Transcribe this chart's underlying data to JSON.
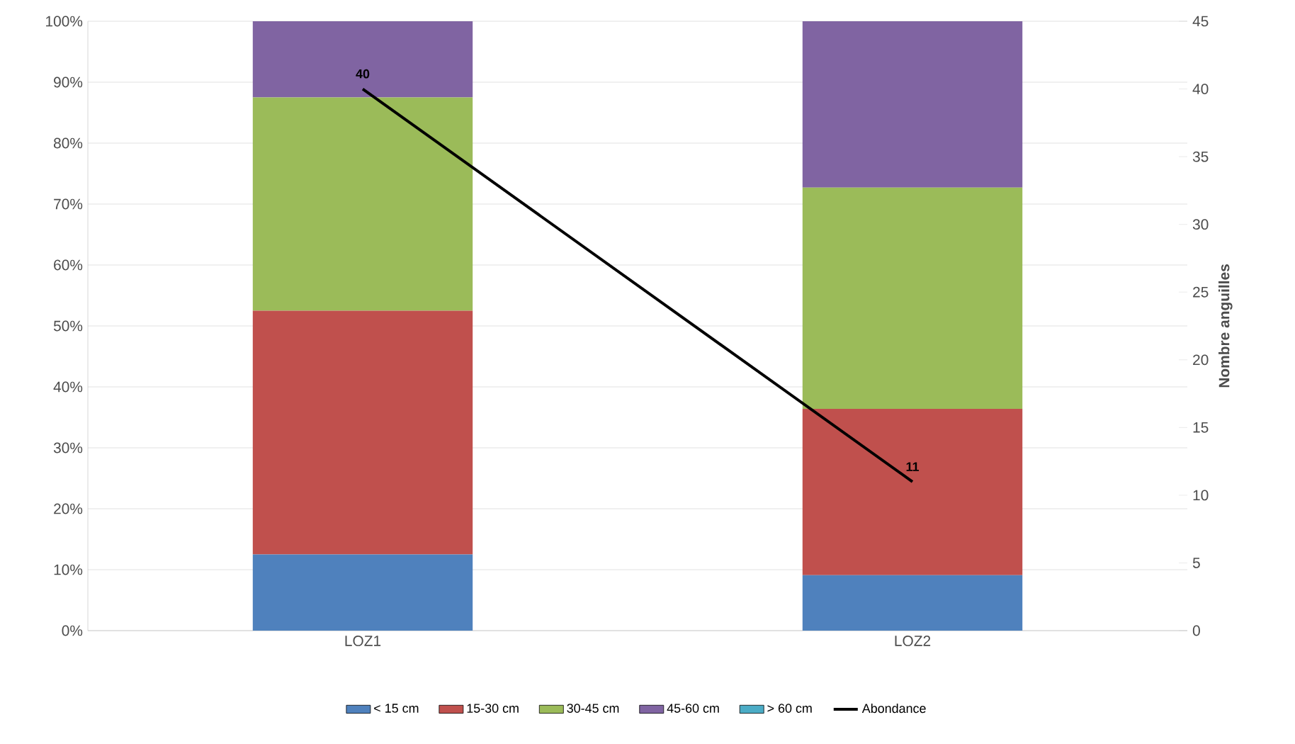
{
  "chart_data": {
    "type": "bar",
    "stacked": true,
    "categories": [
      "LOZ1",
      "LOZ2"
    ],
    "series": [
      {
        "name": "< 15 cm",
        "color": "#4f81bd",
        "values": [
          12.5,
          9.1
        ]
      },
      {
        "name": "15-30 cm",
        "color": "#c0504d",
        "values": [
          40,
          27.3
        ]
      },
      {
        "name": "30-45 cm",
        "color": "#9bbb59",
        "values": [
          35,
          36.3
        ]
      },
      {
        "name": "45-60 cm",
        "color": "#8064a2",
        "values": [
          12.5,
          27.3
        ]
      },
      {
        "name": "> 60 cm",
        "color": "#4bacc6",
        "values": [
          0,
          0
        ]
      },
      {
        "name": "Abondance",
        "type": "line",
        "axis": "y2",
        "color": "#000000",
        "values": [
          40,
          11
        ],
        "value_labels": [
          "40",
          "11"
        ]
      }
    ],
    "ylim": [
      0,
      100
    ],
    "yticks": [
      {
        "value": 0,
        "label": "0%"
      },
      {
        "value": 10,
        "label": "10%"
      },
      {
        "value": 20,
        "label": "20%"
      },
      {
        "value": 30,
        "label": "30%"
      },
      {
        "value": 40,
        "label": "40%"
      },
      {
        "value": 50,
        "label": "50%"
      },
      {
        "value": 60,
        "label": "60%"
      },
      {
        "value": 70,
        "label": "70%"
      },
      {
        "value": 80,
        "label": "80%"
      },
      {
        "value": 90,
        "label": "90%"
      },
      {
        "value": 100,
        "label": "100%"
      }
    ],
    "y2lim": [
      0,
      45
    ],
    "y2ticks": [
      0,
      5,
      10,
      15,
      20,
      25,
      30,
      35,
      40,
      45
    ],
    "y2label": "Nombre anguilles",
    "grid": "y",
    "legend": "bottom"
  }
}
